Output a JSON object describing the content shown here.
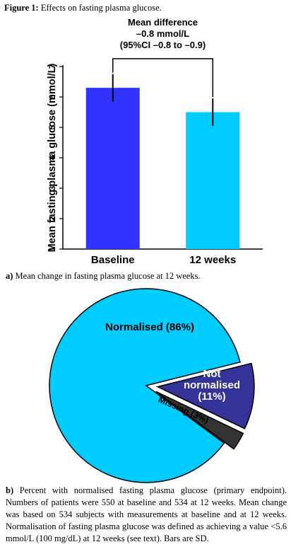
{
  "figure": {
    "label": "Figure 1:",
    "title": "Effects on fasting plasma glucose."
  },
  "chart_data": [
    {
      "type": "bar",
      "categories": [
        "Baseline",
        "12 weeks"
      ],
      "values": [
        6.3,
        5.5
      ],
      "error": [
        0.45,
        0.45
      ],
      "colors": [
        "#3333ff",
        "#00ccff"
      ],
      "ylabel": "Mean fasting plasma glucose (mmol/L)",
      "xlabel": "",
      "ylim": [
        1,
        7
      ],
      "yticks": [
        "1",
        "2",
        "3",
        "4",
        "5",
        "6",
        "7"
      ],
      "grid": false,
      "annotation": [
        "Mean difference",
        "–0.8 mmol/L",
        "(95%CI –0.8 to –0.9)"
      ]
    },
    {
      "type": "pie",
      "slices": [
        {
          "label": "Normalised (86%)",
          "value": 86,
          "color": "#00ccff"
        },
        {
          "label": "Not normalised (11%)",
          "value": 11,
          "color": "#333399"
        },
        {
          "label": "Missing (3%)",
          "value": 3,
          "color": "#333333"
        }
      ]
    }
  ],
  "captions": {
    "a_label": "a)",
    "a_text": "Mean change in fasting plasma glucose at 12 weeks.",
    "b_label": "b)",
    "b_text": "Percent with normalised fasting plasma glucose (primary endpoint). Numbers of patients were 550 at baseline and 534 at 12 weeks. Mean change was based on 534 subjects with measurements at baseline and at 12 weeks. Normalisation of fasting plasma glucose was defined as achieving a value <5.6 mmol/L (100 mg/dL) at 12 weeks (see text). Bars are SD."
  }
}
